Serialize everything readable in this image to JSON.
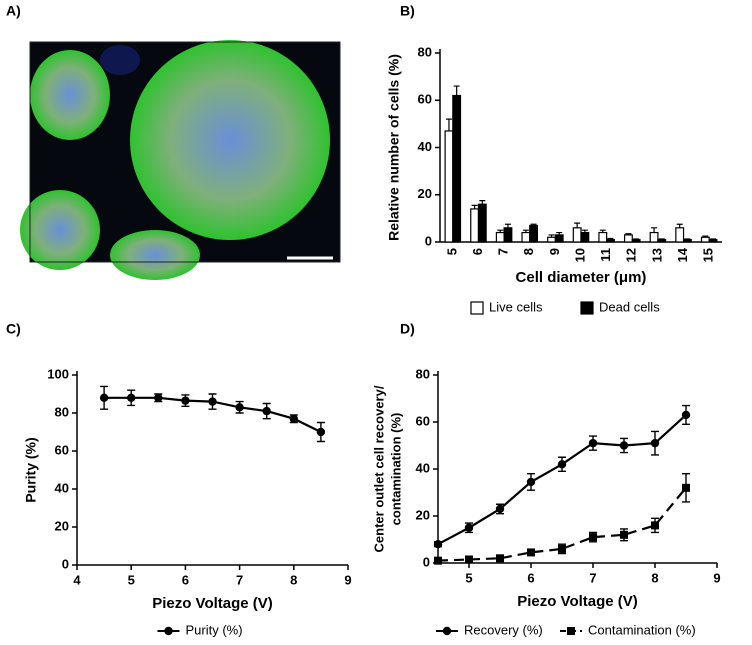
{
  "chart_data": [
    {
      "type": "image",
      "label": "A)"
    },
    {
      "type": "bar",
      "label": "B)",
      "ylabel": "Relative number of cells (%)",
      "xlabel": "Cell diameter (μm)",
      "categories": [
        "5",
        "6",
        "7",
        "8",
        "9",
        "10",
        "11",
        "12",
        "13",
        "14",
        "15"
      ],
      "series": [
        {
          "name": "Live cells",
          "color": "#ffffff",
          "values": [
            47,
            14,
            4,
            4,
            2,
            6,
            4,
            3,
            4,
            6,
            2
          ],
          "errors": [
            5,
            1.5,
            1,
            1,
            1,
            2,
            1,
            0.5,
            2,
            1.5,
            0.5
          ]
        },
        {
          "name": "Dead cells",
          "color": "#000000",
          "values": [
            62,
            16,
            6,
            7,
            3,
            4,
            1,
            1,
            1,
            1,
            1
          ],
          "errors": [
            4,
            1.5,
            1.5,
            0.5,
            1,
            1,
            0.5,
            0.3,
            0.3,
            0.3,
            0.3
          ]
        }
      ],
      "ylim": [
        0,
        80
      ],
      "yticks": [
        0,
        20,
        40,
        60,
        80
      ],
      "legend": "bottom"
    },
    {
      "type": "line",
      "label": "C)",
      "ylabel": "Purity (%)",
      "xlabel": "Piezo Voltage (V)",
      "x": [
        4.5,
        5,
        5.5,
        6,
        6.5,
        7,
        7.5,
        8,
        8.5
      ],
      "series": [
        {
          "name": "Purity (%)",
          "color": "#000000",
          "marker": "circle",
          "dash": false,
          "values": [
            88,
            88,
            88,
            86.5,
            86,
            83,
            81,
            77,
            70
          ],
          "errors": [
            6,
            4,
            2,
            3,
            4,
            3,
            4,
            2,
            5
          ]
        }
      ],
      "xlim": [
        4,
        9
      ],
      "xticks": [
        4,
        5,
        6,
        7,
        8,
        9
      ],
      "ylim": [
        0,
        100
      ],
      "yticks": [
        0,
        20,
        40,
        60,
        80,
        100
      ],
      "legend": "bottom"
    },
    {
      "type": "line",
      "label": "D)",
      "ylabel": [
        "Center outlet cell recovery/",
        "contamination (%)"
      ],
      "xlabel": "Piezo Voltage (V)",
      "x": [
        4.5,
        5,
        5.5,
        6,
        6.5,
        7,
        7.5,
        8,
        8.5
      ],
      "series": [
        {
          "name": "Recovery (%)",
          "color": "#000000",
          "marker": "circle",
          "dash": false,
          "values": [
            8,
            15,
            23,
            34.5,
            42,
            51,
            50,
            51,
            63
          ],
          "errors": [
            1,
            2,
            2,
            3.5,
            3,
            3,
            3,
            5,
            4
          ]
        },
        {
          "name": "Contamination (%)",
          "color": "#000000",
          "marker": "square",
          "dash": true,
          "values": [
            1,
            1.5,
            2,
            4.5,
            6,
            11,
            12,
            16,
            32
          ],
          "errors": [
            0.5,
            0.5,
            0.5,
            1,
            2,
            2,
            2.5,
            3,
            6
          ]
        }
      ],
      "xlim": [
        4.5,
        9
      ],
      "xticks": [
        5,
        6,
        7,
        8,
        9
      ],
      "ylim": [
        0,
        80
      ],
      "yticks": [
        0,
        20,
        40,
        60,
        80
      ],
      "legend": "bottom"
    }
  ]
}
